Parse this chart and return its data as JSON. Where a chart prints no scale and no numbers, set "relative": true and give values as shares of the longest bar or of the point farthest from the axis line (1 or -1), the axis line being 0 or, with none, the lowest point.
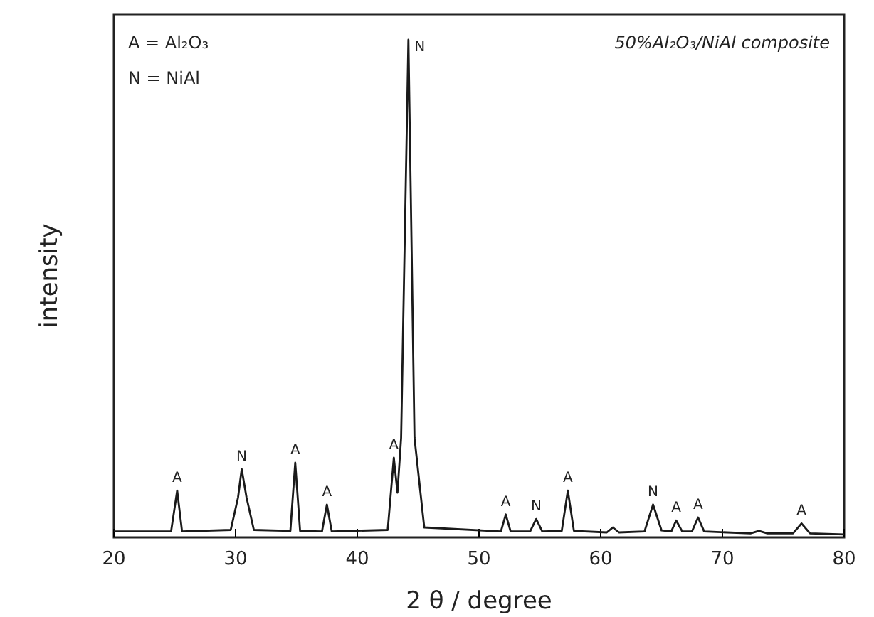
{
  "chart_data": {
    "type": "line",
    "relative": true,
    "xlabel": "2 θ / degree",
    "ylabel": "intensity",
    "xlim": [
      20,
      80
    ],
    "xticks": [
      20,
      30,
      40,
      50,
      60,
      70,
      80
    ],
    "marker": "none",
    "line_style": "solid",
    "x": [
      20,
      24.7,
      25.2,
      25.6,
      29.6,
      30.2,
      30.5,
      30.9,
      31.5,
      34.5,
      34.9,
      35.3,
      37.1,
      37.5,
      37.9,
      42.5,
      43.0,
      43.3,
      43.6,
      44.2,
      44.7,
      45.5,
      51.8,
      52.2,
      52.6,
      54.2,
      54.7,
      55.2,
      56.8,
      57.3,
      57.8,
      60.5,
      61,
      61.5,
      63.6,
      64.3,
      65.0,
      65.8,
      66.2,
      66.7,
      67.5,
      68.0,
      68.5,
      72.3,
      73,
      73.7,
      75.8,
      76.5,
      77.2,
      80
    ],
    "series": [
      {
        "color": "#1a1a1a",
        "values": [
          0.012,
          0.012,
          0.094,
          0.012,
          0.015,
          0.08,
          0.137,
          0.08,
          0.015,
          0.013,
          0.15,
          0.013,
          0.012,
          0.066,
          0.012,
          0.015,
          0.16,
          0.09,
          0.2,
          1.0,
          0.2,
          0.02,
          0.012,
          0.046,
          0.012,
          0.012,
          0.037,
          0.012,
          0.013,
          0.094,
          0.013,
          0.01,
          0.02,
          0.01,
          0.012,
          0.066,
          0.014,
          0.012,
          0.034,
          0.012,
          0.012,
          0.04,
          0.012,
          0.008,
          0.013,
          0.008,
          0.008,
          0.028,
          0.008,
          0.006
        ]
      }
    ],
    "annotations": [
      "A = Al₂O₃",
      "N = NiAl",
      "50%Al₂O₃/NiAl composite",
      {
        "text": "A",
        "x": 25.2,
        "y": 0.094
      },
      {
        "text": "N",
        "x": 30.5,
        "y": 0.137
      },
      {
        "text": "A",
        "x": 34.9,
        "y": 0.15
      },
      {
        "text": "A",
        "x": 37.5,
        "y": 0.066
      },
      {
        "text": "A",
        "x": 43.0,
        "y": 0.16
      },
      {
        "text": "N",
        "x": 44.2,
        "y": 1.0
      },
      {
        "text": "A",
        "x": 52.2,
        "y": 0.046
      },
      {
        "text": "N",
        "x": 54.7,
        "y": 0.037
      },
      {
        "text": "A",
        "x": 57.3,
        "y": 0.094
      },
      {
        "text": "N",
        "x": 64.3,
        "y": 0.066
      },
      {
        "text": "A",
        "x": 66.2,
        "y": 0.034
      },
      {
        "text": "A",
        "x": 68.0,
        "y": 0.04
      },
      {
        "text": "A",
        "x": 76.5,
        "y": 0.028
      }
    ]
  }
}
